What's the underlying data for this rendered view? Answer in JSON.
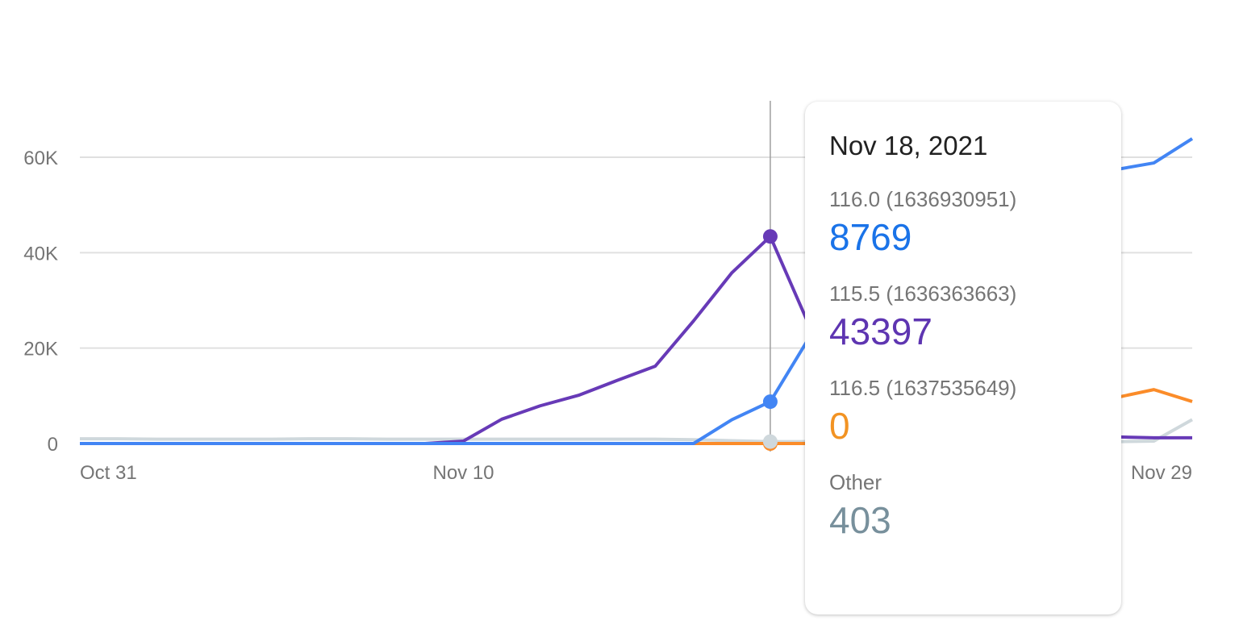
{
  "chart_data": {
    "type": "line",
    "title": "",
    "xlabel": "",
    "ylabel": "",
    "ylim": [
      0,
      70000
    ],
    "yticks": [
      {
        "value": 0,
        "label": "0"
      },
      {
        "value": 20000,
        "label": "20K"
      },
      {
        "value": 40000,
        "label": "40K"
      },
      {
        "value": 60000,
        "label": "60K"
      }
    ],
    "xticks": [
      {
        "index": 0,
        "label": "Oct 31"
      },
      {
        "index": 10,
        "label": "Nov 10"
      },
      {
        "index": 29,
        "label": "Nov 29"
      }
    ],
    "grid": true,
    "x_count": 30,
    "hover_index": 18,
    "series": [
      {
        "name": "116.0 (1636930951)",
        "color": "#4285f4",
        "values": [
          0,
          0,
          0,
          0,
          0,
          0,
          0,
          0,
          0,
          0,
          0,
          0,
          0,
          0,
          0,
          0,
          0,
          5000,
          8769,
          22000,
          32000,
          40000,
          46000,
          50000,
          53000,
          55000,
          56500,
          57400,
          58800,
          63900
        ]
      },
      {
        "name": "115.5 (1636363663)",
        "color": "#673ab7",
        "values": [
          0,
          0,
          0,
          0,
          0,
          0,
          0,
          0,
          0,
          0,
          500,
          5100,
          7900,
          10100,
          13200,
          16200,
          25700,
          35800,
          43397,
          25000,
          15000,
          9000,
          6000,
          4000,
          3000,
          2200,
          1700,
          1400,
          1200,
          1200
        ]
      },
      {
        "name": "116.5 (1637535649)",
        "color": "#fb8c29",
        "values": [
          0,
          0,
          0,
          0,
          0,
          0,
          0,
          0,
          0,
          0,
          0,
          0,
          0,
          0,
          0,
          0,
          0,
          0,
          0,
          0,
          500,
          2000,
          4000,
          6000,
          7500,
          8500,
          9000,
          9600,
          11300,
          8800
        ]
      },
      {
        "name": "Other",
        "color": "#cfd8dc",
        "values": [
          1000,
          1000,
          900,
          900,
          900,
          900,
          1000,
          1000,
          900,
          900,
          900,
          900,
          900,
          900,
          900,
          900,
          800,
          600,
          403,
          400,
          400,
          400,
          400,
          400,
          400,
          400,
          400,
          400,
          500,
          5000
        ]
      }
    ]
  },
  "tooltip": {
    "date": "Nov 18, 2021",
    "items": [
      {
        "label": "116.0 (1636930951)",
        "value": "8769",
        "color": "#1a73e8"
      },
      {
        "label": "115.5 (1636363663)",
        "value": "43397",
        "color": "#5e35b1"
      },
      {
        "label": "116.5 (1637535649)",
        "value": "0",
        "color": "#f29323"
      },
      {
        "label": "Other",
        "value": "403",
        "color": "#78909c"
      }
    ]
  }
}
